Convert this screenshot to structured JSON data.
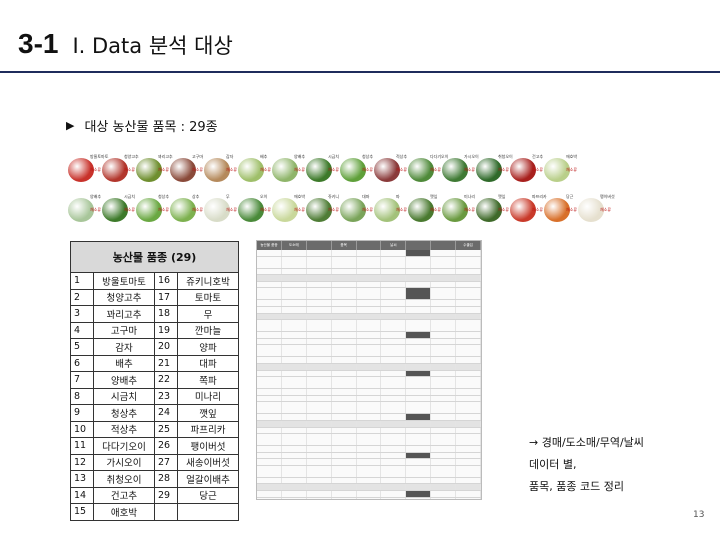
{
  "slide": {
    "number": "3-1",
    "title": "I. Data 분석 대상",
    "subtitle_marker": "▶",
    "subtitle": "대상 농산물 품목 : 29종",
    "page_number": "13"
  },
  "veg_row1": [
    {
      "name": "방울토마토",
      "color": "#c8322b"
    },
    {
      "name": "청양고추",
      "color": "#b2362c"
    },
    {
      "name": "꽈리고추",
      "color": "#6f8f2f"
    },
    {
      "name": "고구마",
      "color": "#8a4a3a"
    },
    {
      "name": "감자",
      "color": "#b58a5c"
    },
    {
      "name": "배추",
      "color": "#9fbf6a"
    },
    {
      "name": "양배추",
      "color": "#8fb56a"
    },
    {
      "name": "시금치",
      "color": "#3d7a2a"
    },
    {
      "name": "청상추",
      "color": "#5fa03a"
    },
    {
      "name": "적상추",
      "color": "#8a3a3a"
    },
    {
      "name": "다다기오이",
      "color": "#4f8a3a"
    },
    {
      "name": "가시오이",
      "color": "#3f7a34"
    },
    {
      "name": "취청오이",
      "color": "#2f6a2a"
    },
    {
      "name": "건고추",
      "color": "#a8201d"
    },
    {
      "name": "애호박",
      "color": "#b9cf8a"
    }
  ],
  "veg_row2": [
    {
      "name": "양배추",
      "color": "#a8c69a"
    },
    {
      "name": "시금치",
      "color": "#3d7a2a"
    },
    {
      "name": "청상추",
      "color": "#6aa842"
    },
    {
      "name": "상추",
      "color": "#7db14f"
    },
    {
      "name": "무",
      "color": "#d8dcc8"
    },
    {
      "name": "오이",
      "color": "#4a8a3a"
    },
    {
      "name": "애호박",
      "color": "#c9d89b"
    },
    {
      "name": "쥬키니",
      "color": "#4f7d36"
    },
    {
      "name": "대파",
      "color": "#7aa45a"
    },
    {
      "name": "파",
      "color": "#a3c27a"
    },
    {
      "name": "깻잎",
      "color": "#4a7a30"
    },
    {
      "name": "미나리",
      "color": "#6a9a40"
    },
    {
      "name": "깻잎",
      "color": "#3f6a2a"
    },
    {
      "name": "파프리카",
      "color": "#c93a2a"
    },
    {
      "name": "당근",
      "color": "#d8702a"
    },
    {
      "name": "팽이버섯",
      "color": "#e6e0cf"
    }
  ],
  "veg_tag": "채소류",
  "crop_table": {
    "header": "농산물 품종 (29)",
    "rows": [
      [
        "1",
        "방울토마토",
        "16",
        "쥬키니호박"
      ],
      [
        "2",
        "청양고추",
        "17",
        "토마토"
      ],
      [
        "3",
        "꽈리고추",
        "18",
        "무"
      ],
      [
        "4",
        "고구마",
        "19",
        "깐마늘"
      ],
      [
        "5",
        "감자",
        "20",
        "양파"
      ],
      [
        "6",
        "배추",
        "21",
        "대파"
      ],
      [
        "7",
        "양배추",
        "22",
        "쪽파"
      ],
      [
        "8",
        "시금치",
        "23",
        "미나리"
      ],
      [
        "9",
        "청상추",
        "24",
        "깻잎"
      ],
      [
        "10",
        "적상추",
        "25",
        "파프리카"
      ],
      [
        "11",
        "다다기오이",
        "26",
        "팽이버섯"
      ],
      [
        "12",
        "가시오이",
        "27",
        "새송이버섯"
      ],
      [
        "13",
        "취청오이",
        "28",
        "얼갈이배추"
      ],
      [
        "14",
        "건고추",
        "29",
        "당근"
      ],
      [
        "15",
        "애호박",
        "",
        ""
      ]
    ]
  },
  "sheet_headers": [
    "농산물 품종",
    "도소매",
    "",
    "품목",
    "",
    "날씨",
    "",
    "",
    "수출입"
  ],
  "note": {
    "arrow": "→",
    "lines": [
      "경매/도소매/무역/날씨",
      "데이터 별,",
      "품목, 품종 코드 정리"
    ]
  }
}
